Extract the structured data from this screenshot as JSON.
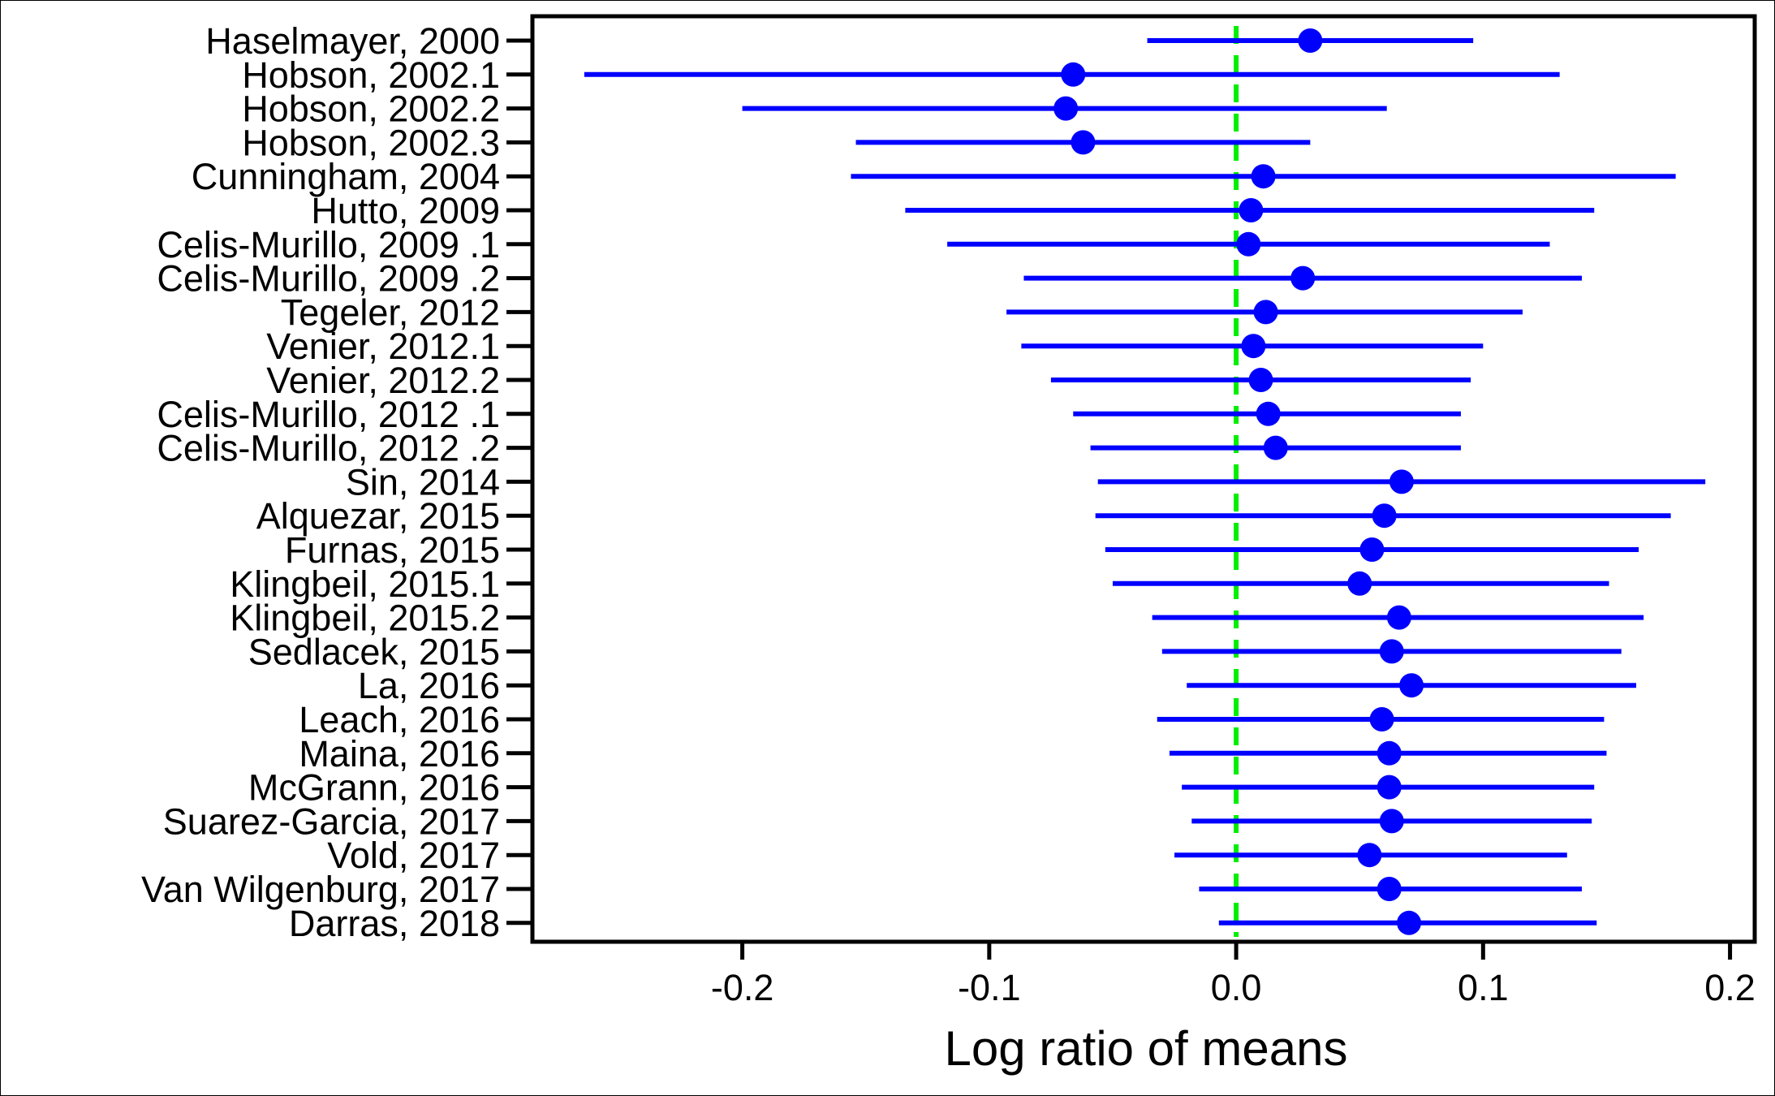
{
  "chart_data": {
    "type": "forest",
    "xlabel": "Log ratio of means",
    "xlim": [
      -0.285,
      0.21
    ],
    "xticks": [
      {
        "value": -0.2,
        "label": "-0.2"
      },
      {
        "value": -0.1,
        "label": "-0.1"
      },
      {
        "value": 0.0,
        "label": "0.0"
      },
      {
        "value": 0.1,
        "label": "0.1"
      },
      {
        "value": 0.2,
        "label": "0.2"
      }
    ],
    "reference_line": 0.0,
    "colors": {
      "estimate": "#0000ff",
      "reference": "#00ee00",
      "axis": "#000000"
    },
    "studies": [
      {
        "label": "Haselmayer, 2000",
        "estimate": 0.03,
        "lower": -0.036,
        "upper": 0.096
      },
      {
        "label": "Hobson, 2002.1",
        "estimate": -0.066,
        "lower": -0.264,
        "upper": 0.131
      },
      {
        "label": "Hobson, 2002.2",
        "estimate": -0.069,
        "lower": -0.2,
        "upper": 0.061
      },
      {
        "label": "Hobson, 2002.3",
        "estimate": -0.062,
        "lower": -0.154,
        "upper": 0.03
      },
      {
        "label": "Cunningham, 2004",
        "estimate": 0.011,
        "lower": -0.156,
        "upper": 0.178
      },
      {
        "label": "Hutto, 2009",
        "estimate": 0.006,
        "lower": -0.134,
        "upper": 0.145
      },
      {
        "label": "Celis-Murillo, 2009 .1",
        "estimate": 0.005,
        "lower": -0.117,
        "upper": 0.127
      },
      {
        "label": "Celis-Murillo, 2009 .2",
        "estimate": 0.027,
        "lower": -0.086,
        "upper": 0.14
      },
      {
        "label": "Tegeler, 2012",
        "estimate": 0.012,
        "lower": -0.093,
        "upper": 0.116
      },
      {
        "label": "Venier, 2012.1",
        "estimate": 0.007,
        "lower": -0.087,
        "upper": 0.1
      },
      {
        "label": "Venier, 2012.2",
        "estimate": 0.01,
        "lower": -0.075,
        "upper": 0.095
      },
      {
        "label": "Celis-Murillo, 2012 .1",
        "estimate": 0.013,
        "lower": -0.066,
        "upper": 0.091
      },
      {
        "label": "Celis-Murillo, 2012 .2",
        "estimate": 0.016,
        "lower": -0.059,
        "upper": 0.091
      },
      {
        "label": "Sin, 2014",
        "estimate": 0.067,
        "lower": -0.056,
        "upper": 0.19
      },
      {
        "label": "Alquezar, 2015",
        "estimate": 0.06,
        "lower": -0.057,
        "upper": 0.176
      },
      {
        "label": "Furnas, 2015",
        "estimate": 0.055,
        "lower": -0.053,
        "upper": 0.163
      },
      {
        "label": "Klingbeil, 2015.1",
        "estimate": 0.05,
        "lower": -0.05,
        "upper": 0.151
      },
      {
        "label": "Klingbeil, 2015.2",
        "estimate": 0.066,
        "lower": -0.034,
        "upper": 0.165
      },
      {
        "label": "Sedlacek, 2015",
        "estimate": 0.063,
        "lower": -0.03,
        "upper": 0.156
      },
      {
        "label": "La, 2016",
        "estimate": 0.071,
        "lower": -0.02,
        "upper": 0.162
      },
      {
        "label": "Leach, 2016",
        "estimate": 0.059,
        "lower": -0.032,
        "upper": 0.149
      },
      {
        "label": "Maina, 2016",
        "estimate": 0.062,
        "lower": -0.027,
        "upper": 0.15
      },
      {
        "label": "McGrann, 2016",
        "estimate": 0.062,
        "lower": -0.022,
        "upper": 0.145
      },
      {
        "label": "Suarez-Garcia, 2017",
        "estimate": 0.063,
        "lower": -0.018,
        "upper": 0.144
      },
      {
        "label": "Vold, 2017",
        "estimate": 0.054,
        "lower": -0.025,
        "upper": 0.134
      },
      {
        "label": "Van Wilgenburg, 2017",
        "estimate": 0.062,
        "lower": -0.015,
        "upper": 0.14
      },
      {
        "label": "Darras, 2018",
        "estimate": 0.07,
        "lower": -0.007,
        "upper": 0.146
      }
    ]
  }
}
